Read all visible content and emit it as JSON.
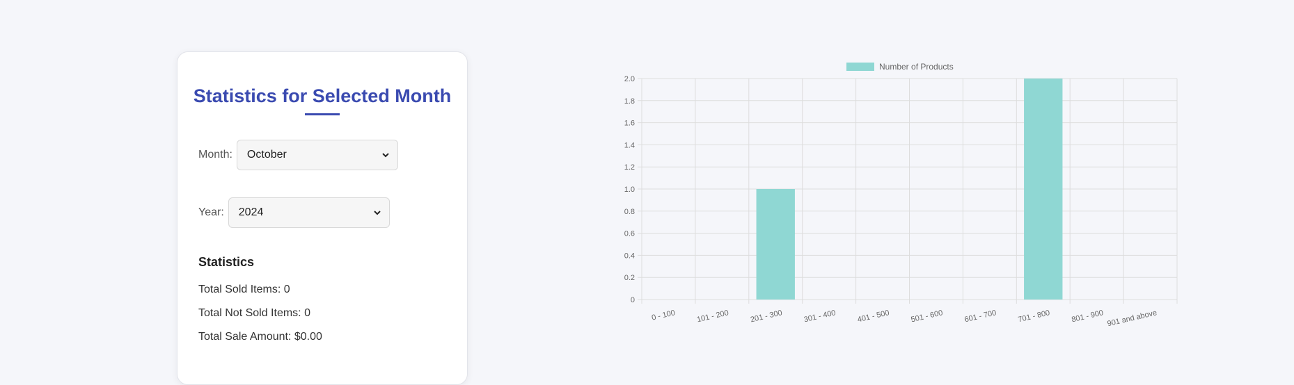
{
  "stats_card": {
    "title": "Statistics for Selected Month",
    "month_label": "Month:",
    "month_value": "October",
    "year_label": "Year:",
    "year_value": "2024",
    "stats_heading": "Statistics",
    "total_sold": "Total Sold Items: 0",
    "total_not_sold": "Total Not Sold Items: 0",
    "total_sale_amount": "Total Sale Amount: $0.00",
    "accent_color": "#3a4ab0"
  },
  "chart_data": {
    "type": "bar",
    "categories": [
      "0 - 100",
      "101 - 200",
      "201 - 300",
      "301 - 400",
      "401 - 500",
      "501 - 600",
      "601 - 700",
      "701 - 800",
      "801 - 900",
      "901 and above"
    ],
    "series": [
      {
        "name": "Number of Products",
        "values": [
          0,
          0,
          1,
          0,
          0,
          0,
          0,
          2,
          0,
          0
        ],
        "color": "#8fd7d3"
      }
    ],
    "yticks": [
      "0",
      "0.2",
      "0.4",
      "0.6",
      "0.8",
      "1.0",
      "1.2",
      "1.4",
      "1.6",
      "1.8",
      "2.0"
    ],
    "ylim": [
      0,
      2
    ],
    "grid": true,
    "legend_position": "top"
  }
}
